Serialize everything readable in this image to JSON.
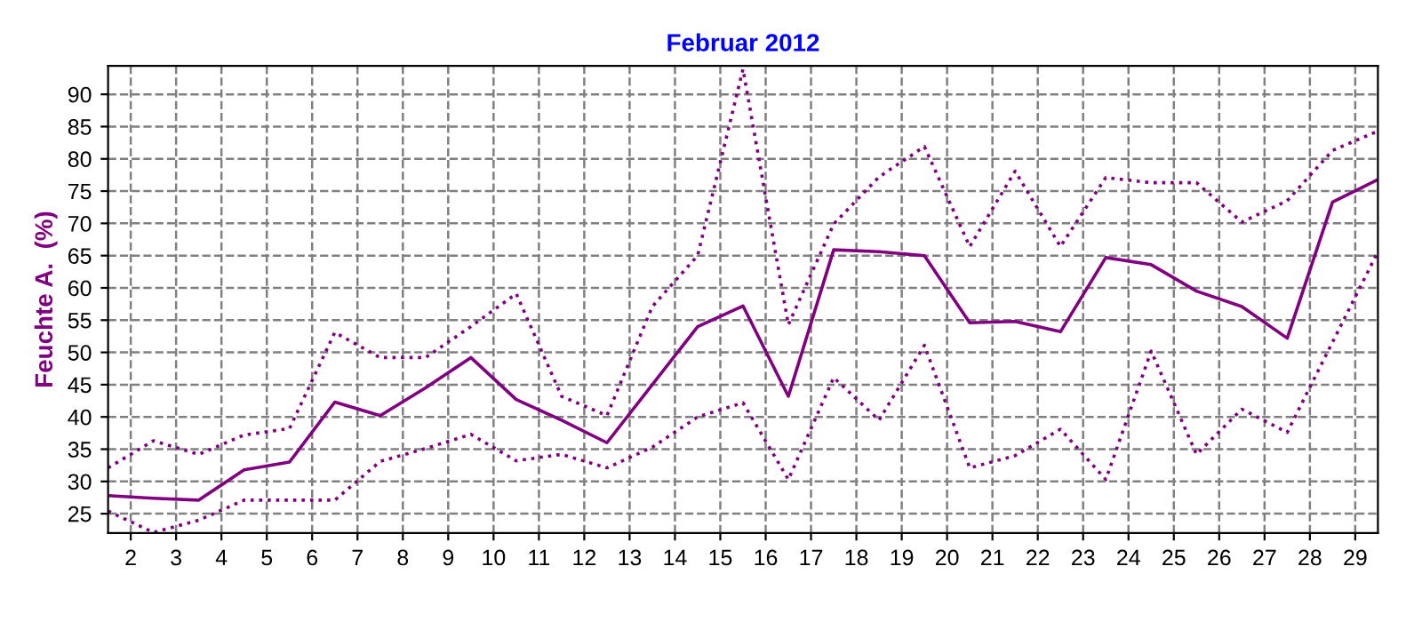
{
  "chart_data": {
    "type": "line",
    "title": "Februar 2012",
    "ylabel": "Feuchte A.  (%)",
    "x": [
      1.5,
      2.5,
      3.5,
      4.5,
      5.5,
      6.5,
      7.5,
      8.5,
      9.5,
      10.5,
      11.5,
      12.5,
      13.5,
      14.5,
      15.5,
      16.5,
      17.5,
      18.5,
      19.5,
      20.5,
      21.5,
      22.5,
      23.5,
      24.5,
      25.5,
      26.5,
      27.5,
      28.5,
      29.5
    ],
    "series": [
      {
        "color": "#800080",
        "line_style": "dotted",
        "values": [
          32.1,
          36.3,
          34.2,
          37.2,
          38.2,
          53.1,
          49.2,
          49.2,
          54,
          59.1,
          43.2,
          40.2,
          57.1,
          65,
          93.9,
          54.3,
          69.9,
          77.2,
          81.9,
          66.4,
          78.1,
          66.4,
          77.1,
          76.3,
          76.3,
          70.2,
          73.5,
          81.3,
          84.3
        ]
      },
      {
        "color": "#800080",
        "line_style": "solid",
        "values": [
          27.8,
          27.4,
          27.1,
          31.8,
          33,
          42.3,
          40.2,
          44.5,
          49.2,
          42.7,
          39.5,
          36,
          45,
          54,
          57.2,
          43.2,
          65.9,
          65.6,
          65,
          54.6,
          54.8,
          53.2,
          64.7,
          63.6,
          59.5,
          57.1,
          52.2,
          73.3,
          76.8
        ]
      },
      {
        "color": "#800080",
        "line_style": "dotted",
        "values": [
          25.4,
          22.1,
          24,
          27.1,
          27.1,
          27.1,
          33.1,
          35.1,
          37.3,
          33.2,
          34.2,
          32.1,
          35.3,
          40,
          42.2,
          30.3,
          46.1,
          39.5,
          51.1,
          32.1,
          34,
          38.1,
          30.3,
          50.2,
          34.2,
          41.2,
          37.6,
          51.6,
          65.6
        ]
      }
    ],
    "xlim": [
      1.5,
      29.5
    ],
    "xticks": [
      2,
      3,
      4,
      5,
      6,
      7,
      8,
      9,
      10,
      11,
      12,
      13,
      14,
      15,
      16,
      17,
      18,
      19,
      20,
      21,
      22,
      23,
      24,
      25,
      26,
      27,
      28,
      29
    ],
    "ylim": [
      22,
      94.4
    ],
    "yticks": [
      25,
      30,
      35,
      40,
      45,
      50,
      55,
      60,
      65,
      70,
      75,
      80,
      85,
      90
    ],
    "grid": true,
    "marker": "none"
  }
}
